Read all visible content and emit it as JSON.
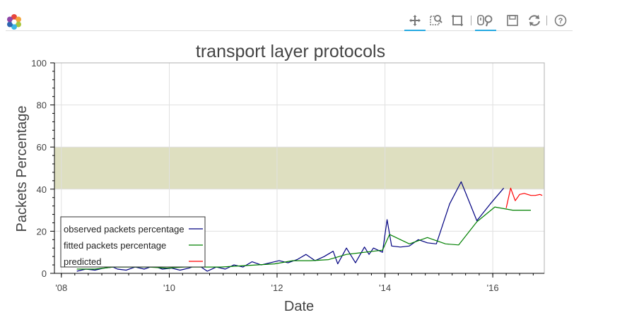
{
  "toolbar": {
    "tools": [
      {
        "name": "pan-tool",
        "active": true
      },
      {
        "name": "box-zoom-tool",
        "active": false
      },
      {
        "name": "resize-tool",
        "active": false
      },
      {
        "name": "wheel-zoom-tool",
        "active": true
      },
      {
        "name": "save-tool",
        "active": false
      },
      {
        "name": "reset-tool",
        "active": false
      },
      {
        "name": "help-tool",
        "active": false
      }
    ]
  },
  "chart_data": {
    "type": "line",
    "title": "transport layer protocols",
    "xlabel": "Date",
    "ylabel": "Packets Percentage",
    "xlim": [
      "2007-11-15",
      "2016-12-15"
    ],
    "ylim": [
      0,
      100
    ],
    "x_ticks": [
      {
        "date": "2008-01-01",
        "label": "'08"
      },
      {
        "date": "2010-01-01",
        "label": "'10"
      },
      {
        "date": "2012-01-01",
        "label": "'12"
      },
      {
        "date": "2014-01-01",
        "label": "'14"
      },
      {
        "date": "2016-01-01",
        "label": "'16"
      }
    ],
    "y_ticks": [
      0,
      20,
      40,
      60,
      80,
      100
    ],
    "band": {
      "y_from": 40,
      "y_to": 60,
      "color": "#dedfc0"
    },
    "grid": true,
    "legend_position": "bottom-left",
    "series": [
      {
        "name": "observed packets percentage",
        "color": "#000080",
        "points": [
          [
            "2008-04-15",
            1.0
          ],
          [
            "2008-06-15",
            2.0
          ],
          [
            "2008-08-15",
            1.5
          ],
          [
            "2008-10-15",
            2.5
          ],
          [
            "2008-12-15",
            3.0
          ],
          [
            "2009-01-15",
            2.0
          ],
          [
            "2009-03-15",
            1.5
          ],
          [
            "2009-05-15",
            3.0
          ],
          [
            "2009-07-15",
            2.0
          ],
          [
            "2009-09-15",
            3.5
          ],
          [
            "2009-11-15",
            2.0
          ],
          [
            "2010-01-15",
            2.5
          ],
          [
            "2010-03-15",
            1.5
          ],
          [
            "2010-05-15",
            2.5
          ],
          [
            "2010-07-15",
            4.0
          ],
          [
            "2010-09-15",
            1.0
          ],
          [
            "2010-11-15",
            3.0
          ],
          [
            "2011-01-15",
            2.0
          ],
          [
            "2011-03-15",
            4.0
          ],
          [
            "2011-05-15",
            3.0
          ],
          [
            "2011-07-15",
            5.5
          ],
          [
            "2011-09-15",
            4.0
          ],
          [
            "2011-11-15",
            5.0
          ],
          [
            "2012-01-15",
            6.0
          ],
          [
            "2012-03-15",
            5.0
          ],
          [
            "2012-05-15",
            6.5
          ],
          [
            "2012-07-15",
            9.0
          ],
          [
            "2012-09-15",
            6.0
          ],
          [
            "2012-11-15",
            8.0
          ],
          [
            "2013-01-15",
            10.5
          ],
          [
            "2013-02-15",
            4.5
          ],
          [
            "2013-04-15",
            12.0
          ],
          [
            "2013-06-15",
            5.0
          ],
          [
            "2013-08-15",
            12.5
          ],
          [
            "2013-09-15",
            9.0
          ],
          [
            "2013-10-15",
            12.0
          ],
          [
            "2013-12-15",
            10.0
          ],
          [
            "2014-01-15",
            25.5
          ],
          [
            "2014-02-15",
            13.0
          ],
          [
            "2014-04-15",
            12.5
          ],
          [
            "2014-06-15",
            13.0
          ],
          [
            "2014-08-15",
            16.0
          ],
          [
            "2014-10-15",
            14.5
          ],
          [
            "2014-12-15",
            14.0
          ],
          [
            "2015-03-15",
            33.0
          ],
          [
            "2015-06-01",
            43.5
          ],
          [
            "2015-09-15",
            25.0
          ],
          [
            "2015-12-15",
            33.0
          ],
          [
            "2016-03-15",
            40.5
          ]
        ]
      },
      {
        "name": "fitted packets percentage",
        "color": "#008000",
        "points": [
          [
            "2008-04-15",
            2.0
          ],
          [
            "2008-08-15",
            2.0
          ],
          [
            "2008-12-15",
            3.0
          ],
          [
            "2009-04-15",
            3.0
          ],
          [
            "2009-08-15",
            3.0
          ],
          [
            "2009-12-15",
            2.5
          ],
          [
            "2010-04-15",
            3.0
          ],
          [
            "2010-08-15",
            3.0
          ],
          [
            "2010-12-15",
            3.0
          ],
          [
            "2011-04-15",
            3.5
          ],
          [
            "2011-08-15",
            4.0
          ],
          [
            "2011-12-15",
            4.5
          ],
          [
            "2012-04-15",
            6.0
          ],
          [
            "2012-08-15",
            6.0
          ],
          [
            "2012-12-15",
            6.5
          ],
          [
            "2013-04-15",
            9.0
          ],
          [
            "2013-08-15",
            10.0
          ],
          [
            "2013-12-15",
            11.0
          ],
          [
            "2014-02-01",
            18.5
          ],
          [
            "2014-06-15",
            14.0
          ],
          [
            "2014-10-15",
            17.0
          ],
          [
            "2015-02-15",
            14.0
          ],
          [
            "2015-05-15",
            13.5
          ],
          [
            "2015-09-15",
            24.5
          ],
          [
            "2016-01-15",
            31.5
          ],
          [
            "2016-05-15",
            30.0
          ],
          [
            "2016-09-15",
            30.0
          ]
        ]
      },
      {
        "name": "predicted",
        "color": "#ff0000",
        "points": [
          [
            "2016-04-01",
            31.0
          ],
          [
            "2016-05-01",
            40.5
          ],
          [
            "2016-06-01",
            34.5
          ],
          [
            "2016-07-01",
            37.5
          ],
          [
            "2016-08-01",
            38.0
          ],
          [
            "2016-09-15",
            37.0
          ],
          [
            "2016-10-15",
            37.0
          ],
          [
            "2016-11-15",
            37.5
          ],
          [
            "2016-12-01",
            37.0
          ]
        ]
      }
    ]
  }
}
